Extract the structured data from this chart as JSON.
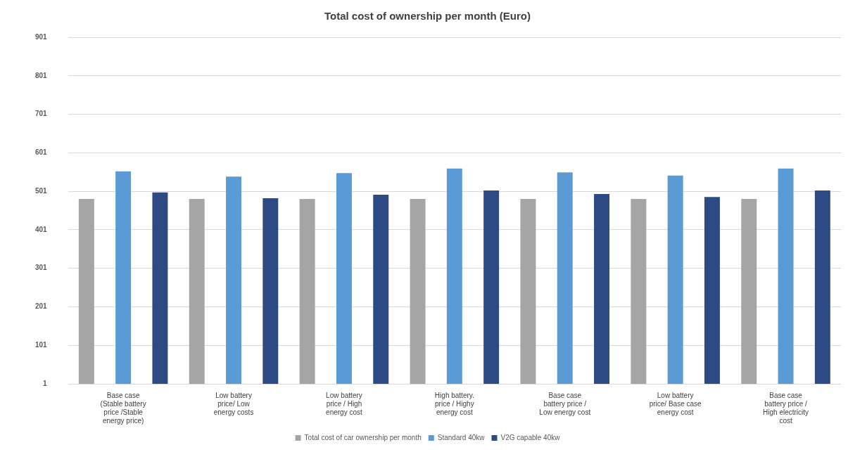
{
  "chart_data": {
    "type": "bar",
    "title": "Total cost of ownership per month (Euro)",
    "categories": [
      "Base case (Stable battery price /Stable energy price)",
      "Low battery price/ Low energy costs",
      "Low battery price / High energy cost",
      "High battery. price / Highy energy cost",
      "Base case battery price / Low energy cost",
      "Low battery price/ Base case energy cost",
      "Base case battery price / High electricity cost"
    ],
    "series": [
      {
        "name": "Total cost of car ownership per month",
        "color": "#a5a5a5",
        "values": [
          481,
          481,
          481,
          481,
          481,
          481,
          481
        ]
      },
      {
        "name": "Standard 40kw",
        "color": "#5b9bd5",
        "values": [
          553,
          539,
          548,
          560,
          550,
          542,
          560
        ]
      },
      {
        "name": "V2G capable 40kw",
        "color": "#2e4a85",
        "values": [
          498,
          483,
          492,
          503,
          494,
          486,
          503
        ]
      }
    ],
    "ylim": [
      1,
      901
    ],
    "yticks": [
      1,
      101,
      201,
      301,
      401,
      501,
      601,
      701,
      801,
      901
    ],
    "grid": "y",
    "legend": "bottom"
  }
}
